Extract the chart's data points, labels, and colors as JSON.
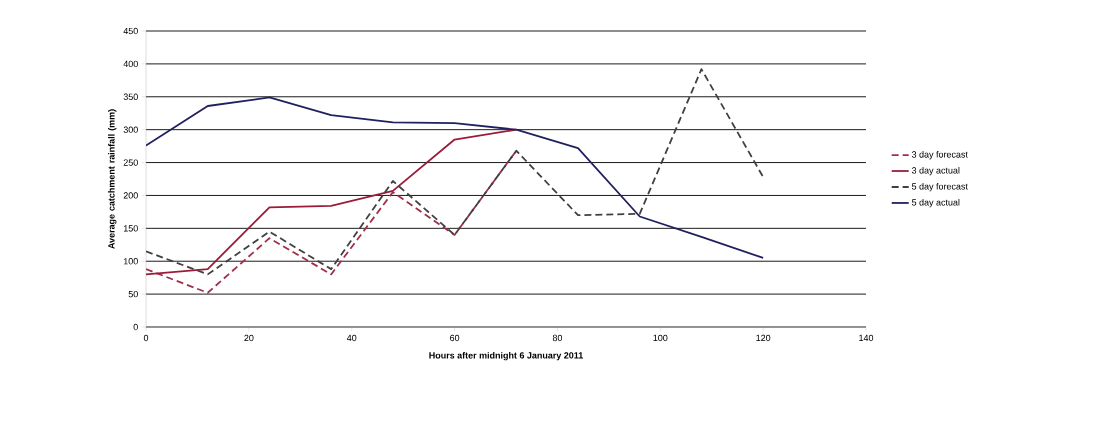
{
  "chart_data": {
    "type": "line",
    "xlabel": "Hours after midnight 6 January 2011",
    "ylabel": "Average catchment rainfall (mm)",
    "xlim": [
      0,
      140
    ],
    "xticks": [
      0,
      20,
      40,
      60,
      80,
      100,
      120,
      140
    ],
    "ylim": [
      0,
      450
    ],
    "yticks": [
      0,
      50,
      100,
      150,
      200,
      250,
      300,
      350,
      400,
      450
    ],
    "grid": "y",
    "legend": "right",
    "marker": "none",
    "series": [
      {
        "name": "3 day forecast",
        "color": "#a03048",
        "line_style": "dashed",
        "x": [
          0,
          12,
          24,
          36,
          48,
          60,
          72
        ],
        "values": [
          88,
          52,
          135,
          80,
          205,
          140,
          268
        ]
      },
      {
        "name": "3 day actual",
        "color": "#9b1b3a",
        "line_style": "solid",
        "x": [
          0,
          12,
          24,
          36,
          48,
          60,
          72
        ],
        "values": [
          80,
          88,
          182,
          184,
          207,
          285,
          300
        ]
      },
      {
        "name": "5 day forecast",
        "color": "#404040",
        "line_style": "dashed",
        "x": [
          0,
          12,
          24,
          36,
          48,
          60,
          72,
          84,
          96,
          108,
          120
        ],
        "values": [
          115,
          80,
          145,
          88,
          222,
          140,
          268,
          170,
          172,
          392,
          228
        ]
      },
      {
        "name": "5 day actual",
        "color": "#20205e",
        "line_style": "solid",
        "x": [
          0,
          12,
          24,
          36,
          48,
          60,
          72,
          84,
          96,
          108,
          120
        ],
        "values": [
          276,
          336,
          349,
          322,
          311,
          310,
          300,
          272,
          168,
          137,
          105
        ]
      }
    ]
  }
}
